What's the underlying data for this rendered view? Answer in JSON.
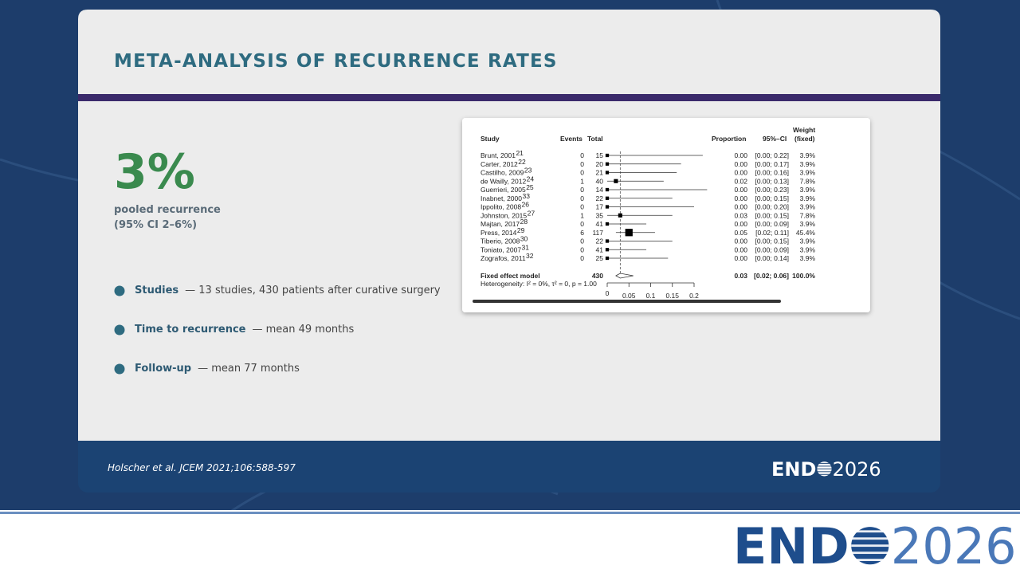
{
  "header": {
    "title": "META-ANALYSIS OF RECURRENCE RATES"
  },
  "stat": {
    "value": "3%",
    "label": "pooled recurrence",
    "ci": "(95% CI 2–6%)"
  },
  "bullets": [
    {
      "label": "Studies",
      "detail": "—  13 studies, 430 patients after curative surgery"
    },
    {
      "label": "Time to recurrence",
      "detail": "—  mean 49 months"
    },
    {
      "label": "Follow-up",
      "detail": "—  mean 77 months"
    }
  ],
  "forest": {
    "columns": {
      "study": "Study",
      "events": "Events",
      "total": "Total",
      "proportion": "Proportion",
      "ci": "95%–CI",
      "weight": "Weight",
      "weight_sub": "(fixed)"
    },
    "rows": [
      {
        "study": "Brunt, 2001",
        "ref": "21",
        "events": "0",
        "total": "15",
        "proportion": "0.00",
        "ci": "[0.00; 0.22]",
        "weight": "3.9%"
      },
      {
        "study": "Carter, 2012",
        "ref": "22",
        "events": "0",
        "total": "20",
        "proportion": "0.00",
        "ci": "[0.00; 0.17]",
        "weight": "3.9%"
      },
      {
        "study": "Castilho, 2009",
        "ref": "23",
        "events": "0",
        "total": "21",
        "proportion": "0.00",
        "ci": "[0.00; 0.16]",
        "weight": "3.9%"
      },
      {
        "study": "de Wailly, 2012",
        "ref": "24",
        "events": "1",
        "total": "40",
        "proportion": "0.02",
        "ci": "[0.00; 0.13]",
        "weight": "7.8%"
      },
      {
        "study": "Guerrieri, 2005",
        "ref": "25",
        "events": "0",
        "total": "14",
        "proportion": "0.00",
        "ci": "[0.00; 0.23]",
        "weight": "3.9%"
      },
      {
        "study": "Inabnet, 2000",
        "ref": "33",
        "events": "0",
        "total": "22",
        "proportion": "0.00",
        "ci": "[0.00; 0.15]",
        "weight": "3.9%"
      },
      {
        "study": "Ippolito, 2008",
        "ref": "26",
        "events": "0",
        "total": "17",
        "proportion": "0.00",
        "ci": "[0.00; 0.20]",
        "weight": "3.9%"
      },
      {
        "study": "Johnston, 2015",
        "ref": "27",
        "events": "1",
        "total": "35",
        "proportion": "0.03",
        "ci": "[0.00; 0.15]",
        "weight": "7.8%"
      },
      {
        "study": "Majtan, 2017",
        "ref": "28",
        "events": "0",
        "total": "41",
        "proportion": "0.00",
        "ci": "[0.00; 0.09]",
        "weight": "3.9%"
      },
      {
        "study": "Press, 2014",
        "ref": "29",
        "events": "6",
        "total": "117",
        "proportion": "0.05",
        "ci": "[0.02; 0.11]",
        "weight": "45.4%"
      },
      {
        "study": "Tiberio, 2008",
        "ref": "30",
        "events": "0",
        "total": "22",
        "proportion": "0.00",
        "ci": "[0.00; 0.15]",
        "weight": "3.9%"
      },
      {
        "study": "Toniato, 2007",
        "ref": "31",
        "events": "0",
        "total": "41",
        "proportion": "0.00",
        "ci": "[0.00; 0.09]",
        "weight": "3.9%"
      },
      {
        "study": "Zografos, 2011",
        "ref": "32",
        "events": "0",
        "total": "25",
        "proportion": "0.00",
        "ci": "[0.00; 0.14]",
        "weight": "3.9%"
      }
    ],
    "pooled": {
      "study": "Fixed effect model",
      "total": "430",
      "proportion": "0.03",
      "ci": "[0.02; 0.06]",
      "weight": "100.0%"
    },
    "heterogeneity": "Heterogeneity: I² = 0%, τ² = 0, p = 1.00",
    "xlim": [
      0,
      0.2
    ],
    "xticks": [
      0,
      0.05,
      0.1,
      0.15,
      0.2
    ]
  },
  "footer": {
    "citation": "Holscher et al. JCEM 2021;106:588-597"
  },
  "logo": {
    "left": "END",
    "right": "2026"
  }
}
